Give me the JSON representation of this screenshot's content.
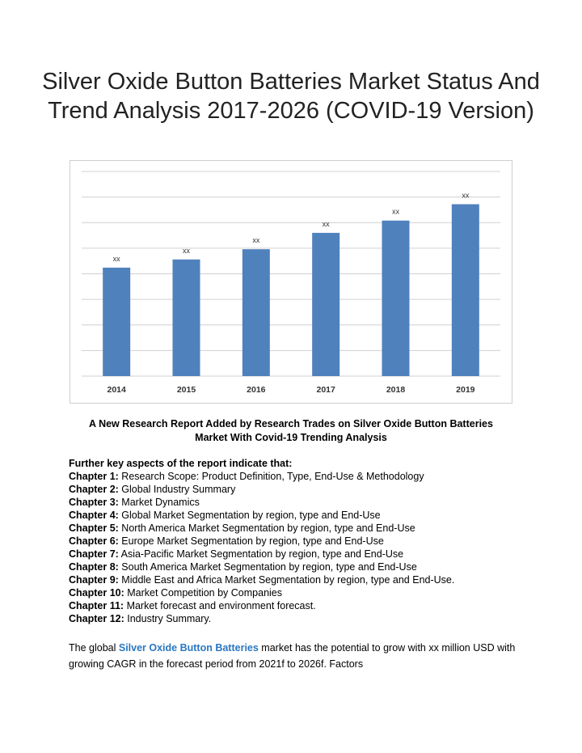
{
  "document": {
    "title": "Silver Oxide Button Batteries Market Status And Trend Analysis 2017-2026 (COVID-19 Version)",
    "subtitle": "A New Research Report Added by Research Trades on Silver Oxide Button Batteries Market With Covid-19 Trending Analysis",
    "aspects_heading": "Further key aspects of the report indicate that:",
    "chapters": [
      {
        "label": "Chapter 1:",
        "text": " Research Scope: Product Definition, Type, End-Use & Methodology"
      },
      {
        "label": "Chapter 2:",
        "text": " Global Industry Summary"
      },
      {
        "label": "Chapter 3:",
        "text": " Market Dynamics"
      },
      {
        "label": "Chapter 4:",
        "text": " Global Market Segmentation by region, type and End-Use"
      },
      {
        "label": "Chapter 5:",
        "text": " North America Market Segmentation by region, type and End-Use"
      },
      {
        "label": "Chapter 6:",
        "text": " Europe Market Segmentation by region, type and End-Use"
      },
      {
        "label": "Chapter 7:",
        "text": " Asia-Pacific Market Segmentation by region, type and End-Use"
      },
      {
        "label": "Chapter 8:",
        "text": " South America Market Segmentation by region, type and End-Use"
      },
      {
        "label": "Chapter 9:",
        "text": " Middle East and Africa Market Segmentation by region, type and End-Use."
      },
      {
        "label": "Chapter 10:",
        "text": " Market Competition by Companies"
      },
      {
        "label": "Chapter 11:",
        "text": " Market forecast and environment forecast."
      },
      {
        "label": "Chapter 12:",
        "text": " Industry Summary."
      }
    ],
    "paragraph": {
      "before": "The global ",
      "link": "Silver Oxide Button Batteries",
      "after": " market has the potential to grow with xx million USD with growing CAGR in the forecast period from 2021f to 2026f. Factors"
    },
    "link_color": "#2a77c0"
  },
  "chart_data": {
    "type": "bar",
    "categories": [
      "2014",
      "2015",
      "2016",
      "2017",
      "2018",
      "2019"
    ],
    "values": [
      53,
      57,
      62,
      70,
      76,
      84
    ],
    "data_labels": [
      "xx",
      "xx",
      "xx",
      "xx",
      "xx",
      "xx"
    ],
    "ylim": [
      0,
      100
    ],
    "grid": true,
    "bar_color": "#4f81bd",
    "grid_color": "#d0d0d0"
  }
}
